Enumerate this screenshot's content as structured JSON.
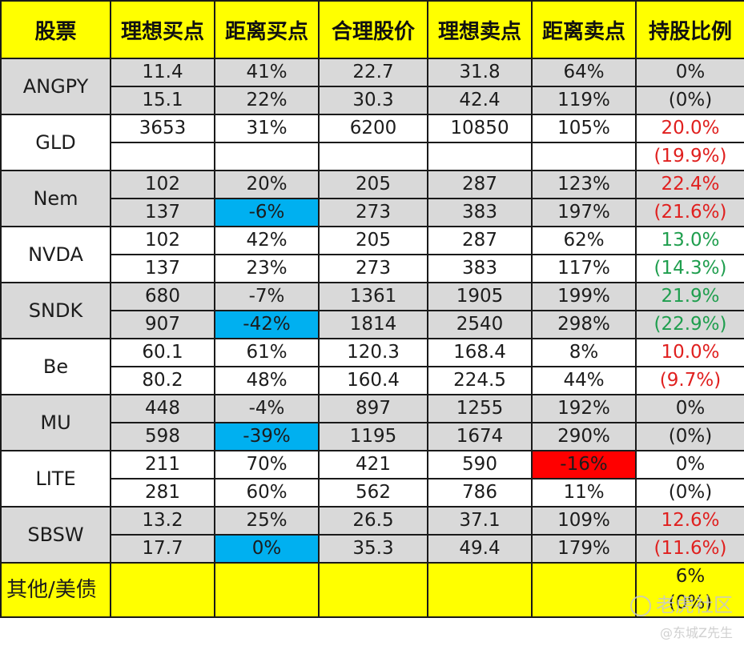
{
  "header": {
    "stock": "股票",
    "ideal_buy": "理想买点",
    "dist_buy": "距离买点",
    "fair_price": "合理股价",
    "ideal_sell": "理想卖点",
    "dist_sell": "距离卖点",
    "holding": "持股比例"
  },
  "rows": [
    {
      "ticker": "ANGPY",
      "bg": "gray",
      "r1": [
        "11.4",
        "41%",
        "22.7",
        "31.8",
        "64%"
      ],
      "r2": [
        "15.1",
        "22%",
        "30.3",
        "42.4",
        "119%"
      ],
      "hold1": "0%",
      "hold2": "(0%)",
      "hold_color": "black"
    },
    {
      "ticker": "GLD",
      "bg": "white",
      "r1": [
        "3653",
        "31%",
        "6200",
        "10850",
        "105%"
      ],
      "r2": [
        "",
        "",
        "",
        "",
        ""
      ],
      "hold1": "20.0%",
      "hold2": "(19.9%)",
      "hold_color": "red"
    },
    {
      "ticker": "Nem",
      "bg": "gray",
      "r1": [
        "102",
        "20%",
        "205",
        "287",
        "123%"
      ],
      "r2": [
        "137",
        "-6%",
        "273",
        "383",
        "197%"
      ],
      "hold1": "22.4%",
      "hold2": "(21.6%)",
      "hold_color": "red",
      "highlight_r2_dist_buy": "blue"
    },
    {
      "ticker": "NVDA",
      "bg": "white",
      "r1": [
        "102",
        "42%",
        "205",
        "287",
        "62%"
      ],
      "r2": [
        "137",
        "23%",
        "273",
        "383",
        "117%"
      ],
      "hold1": "13.0%",
      "hold2": "(14.3%)",
      "hold_color": "green"
    },
    {
      "ticker": "SNDK",
      "bg": "gray",
      "r1": [
        "680",
        "-7%",
        "1361",
        "1905",
        "199%"
      ],
      "r2": [
        "907",
        "-42%",
        "1814",
        "2540",
        "298%"
      ],
      "hold1": "21.9%",
      "hold2": "(22.9%)",
      "hold_color": "green",
      "highlight_r2_dist_buy": "blue"
    },
    {
      "ticker": "Be",
      "bg": "white",
      "r1": [
        "60.1",
        "61%",
        "120.3",
        "168.4",
        "8%"
      ],
      "r2": [
        "80.2",
        "48%",
        "160.4",
        "224.5",
        "44%"
      ],
      "hold1": "10.0%",
      "hold2": "(9.7%)",
      "hold_color": "red"
    },
    {
      "ticker": "MU",
      "bg": "gray",
      "r1": [
        "448",
        "-4%",
        "897",
        "1255",
        "192%"
      ],
      "r2": [
        "598",
        "-39%",
        "1195",
        "1674",
        "290%"
      ],
      "hold1": "0%",
      "hold2": "(0%)",
      "hold_color": "black",
      "highlight_r2_dist_buy": "blue"
    },
    {
      "ticker": "LITE",
      "bg": "white",
      "r1": [
        "211",
        "70%",
        "421",
        "590",
        "-16%"
      ],
      "r2": [
        "281",
        "60%",
        "562",
        "786",
        "11%"
      ],
      "hold1": "0%",
      "hold2": "(0%)",
      "hold_color": "black",
      "highlight_r1_dist_sell": "red"
    },
    {
      "ticker": "SBSW",
      "bg": "gray",
      "r1": [
        "13.2",
        "25%",
        "26.5",
        "37.1",
        "109%"
      ],
      "r2": [
        "17.7",
        "0%",
        "35.3",
        "49.4",
        "179%"
      ],
      "hold1": "12.6%",
      "hold2": "(11.6%)",
      "hold_color": "red",
      "highlight_r2_dist_buy": "blue"
    }
  ],
  "other": {
    "label": "其他/美债",
    "hold1": "6%",
    "hold2": "(0%)"
  },
  "watermark": {
    "main": "老虎社区",
    "sub": "@东城Z先生"
  },
  "colors": {
    "header_bg": "#ffff00",
    "gray_row": "#d9d9d9",
    "blue_highlight": "#00b0f0",
    "red_highlight": "#ff0000",
    "red_text": "#e0201f",
    "green_text": "#1f9e4e"
  }
}
